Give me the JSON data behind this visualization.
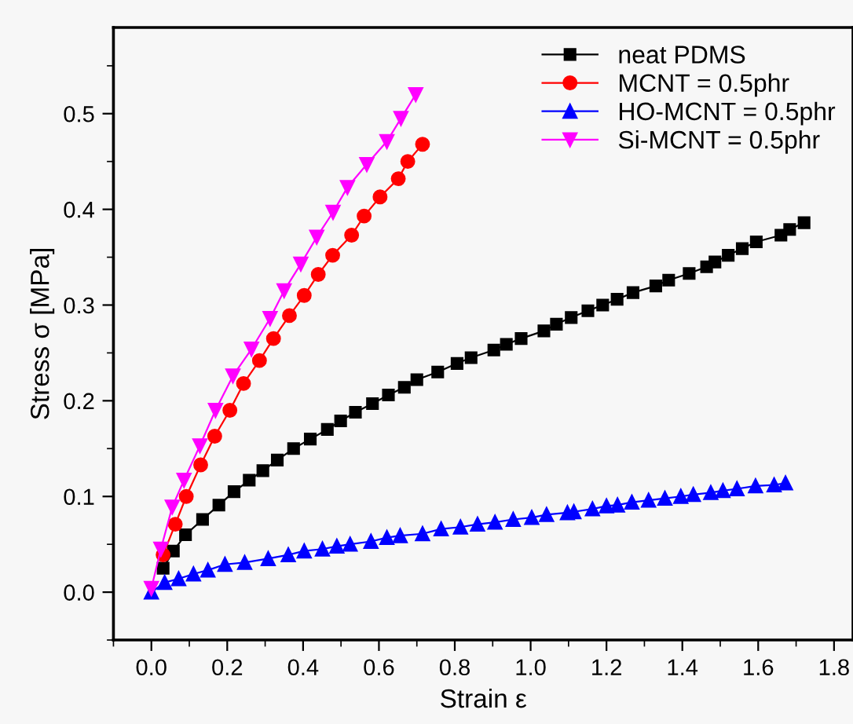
{
  "chart_data": {
    "type": "line",
    "xlabel": "Strain ε",
    "ylabel": "Stress σ [MPa]",
    "xlim": [
      -0.1,
      1.85
    ],
    "ylim": [
      -0.05,
      0.59
    ],
    "xticks": [
      {
        "value": 0,
        "label": "0.0"
      },
      0.2,
      0.4,
      0.6,
      0.8,
      {
        "value": 1,
        "label": "1.0"
      },
      1.2,
      1.4,
      1.6,
      1.8
    ],
    "yticks": [
      {
        "value": 0,
        "label": "0.0"
      },
      0.1,
      0.2,
      0.3,
      0.4,
      0.5
    ],
    "legend": "top right",
    "grid": false,
    "line_style": "solid",
    "series": [
      {
        "name": "neat PDMS",
        "color": "#000000",
        "marker": "square",
        "x": [
          0.031,
          0.058,
          0.09,
          0.135,
          0.178,
          0.218,
          0.258,
          0.294,
          0.332,
          0.375,
          0.419,
          0.464,
          0.499,
          0.538,
          0.583,
          0.625,
          0.667,
          0.7,
          0.755,
          0.806,
          0.843,
          0.903,
          0.936,
          0.975,
          1.035,
          1.068,
          1.107,
          1.151,
          1.19,
          1.228,
          1.27,
          1.33,
          1.364,
          1.418,
          1.464,
          1.486,
          1.521,
          1.558,
          1.595,
          1.66,
          1.683,
          1.721
        ],
        "values": [
          0.025,
          0.043,
          0.06,
          0.076,
          0.091,
          0.105,
          0.117,
          0.127,
          0.138,
          0.15,
          0.16,
          0.17,
          0.179,
          0.188,
          0.197,
          0.206,
          0.214,
          0.222,
          0.23,
          0.239,
          0.245,
          0.253,
          0.259,
          0.265,
          0.273,
          0.28,
          0.287,
          0.294,
          0.3,
          0.306,
          0.313,
          0.32,
          0.326,
          0.333,
          0.34,
          0.345,
          0.352,
          0.359,
          0.366,
          0.373,
          0.379,
          0.386
        ]
      },
      {
        "name": "MCNT = 0.5phr",
        "color": "#ff0000",
        "marker": "circle",
        "x": [
          0.031,
          0.063,
          0.092,
          0.13,
          0.167,
          0.207,
          0.243,
          0.285,
          0.322,
          0.364,
          0.403,
          0.44,
          0.478,
          0.528,
          0.561,
          0.603,
          0.651,
          0.676,
          0.715
        ],
        "values": [
          0.039,
          0.071,
          0.1,
          0.133,
          0.163,
          0.19,
          0.218,
          0.242,
          0.265,
          0.289,
          0.31,
          0.332,
          0.352,
          0.373,
          0.393,
          0.413,
          0.432,
          0.45,
          0.468
        ]
      },
      {
        "name": "HO-MCNT = 0.5phr",
        "color": "#0000ff",
        "marker": "triangle",
        "x": [
          0,
          0.035,
          0.072,
          0.111,
          0.149,
          0.194,
          0.246,
          0.308,
          0.361,
          0.403,
          0.451,
          0.489,
          0.524,
          0.579,
          0.621,
          0.656,
          0.715,
          0.764,
          0.815,
          0.86,
          0.906,
          0.954,
          1.003,
          1.042,
          1.097,
          1.114,
          1.163,
          1.2,
          1.229,
          1.267,
          1.311,
          1.354,
          1.396,
          1.429,
          1.475,
          1.507,
          1.544,
          1.593,
          1.642,
          1.672
        ],
        "values": [
          0.0,
          0.01,
          0.014,
          0.019,
          0.023,
          0.029,
          0.031,
          0.035,
          0.039,
          0.043,
          0.045,
          0.048,
          0.05,
          0.053,
          0.057,
          0.059,
          0.061,
          0.066,
          0.068,
          0.071,
          0.073,
          0.076,
          0.078,
          0.081,
          0.083,
          0.084,
          0.087,
          0.09,
          0.091,
          0.094,
          0.096,
          0.098,
          0.1,
          0.102,
          0.104,
          0.106,
          0.108,
          0.111,
          0.112,
          0.114
        ]
      },
      {
        "name": "Si-MCNT = 0.5phr",
        "color": "#ff00ff",
        "marker": "triangle_down",
        "x": [
          0,
          0.025,
          0.055,
          0.086,
          0.128,
          0.169,
          0.215,
          0.264,
          0.313,
          0.35,
          0.394,
          0.436,
          0.479,
          0.517,
          0.568,
          0.621,
          0.658,
          0.697
        ],
        "values": [
          0.004,
          0.045,
          0.089,
          0.117,
          0.153,
          0.19,
          0.226,
          0.254,
          0.286,
          0.315,
          0.343,
          0.371,
          0.397,
          0.423,
          0.447,
          0.471,
          0.495,
          0.52
        ]
      }
    ]
  }
}
